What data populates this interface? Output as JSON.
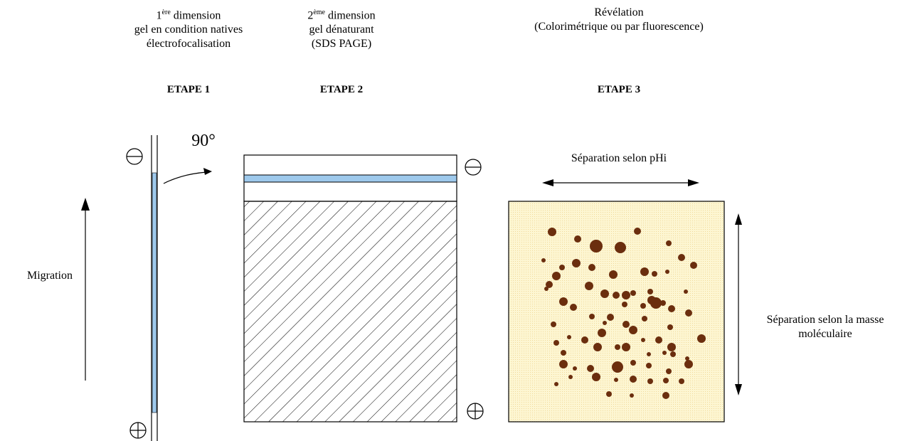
{
  "step1": {
    "line1_num": "1",
    "line1_sup": "ère",
    "line1_rest": " dimension",
    "line2": "gel en condition natives",
    "line3": "électrofocalisation",
    "label": "ETAPE 1"
  },
  "step2": {
    "line1_num": "2",
    "line1_sup": "ème",
    "line1_rest": " dimension",
    "line2": "gel dénaturant",
    "line3": "(SDS  PAGE)",
    "label": "ETAPE 2"
  },
  "step3": {
    "line1": "Révélation",
    "line2": "(Colorimétrique ou par fluorescence)",
    "label": "ETAPE 3"
  },
  "rotation_label": "90°",
  "migration_label": "Migration",
  "ph_separation_label": "Séparation selon pHi",
  "mass_separation_line1": "Séparation selon la masse",
  "mass_separation_line2": "moléculaire",
  "colors": {
    "strip_blue": "#9ec9ec",
    "gel_background": "#fdf6d2",
    "spot_brown": "#6b2e0e"
  }
}
